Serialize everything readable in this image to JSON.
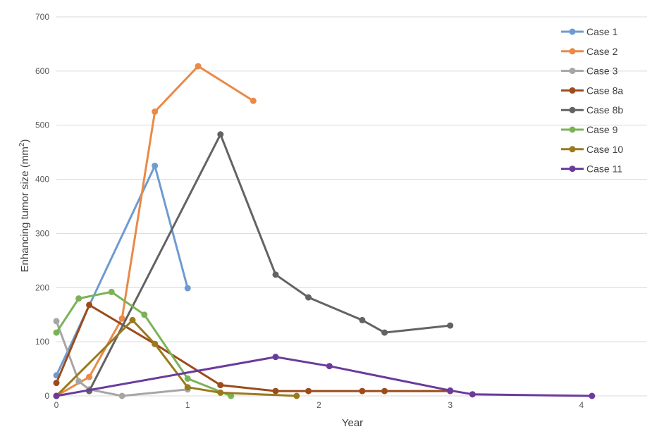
{
  "chart_data": {
    "type": "line",
    "title": "",
    "xlabel": "Year",
    "ylabel": "Enhancing tumor size (mm",
    "ylabel_sup": "2",
    "ylabel_close": ")",
    "xlim": [
      0,
      4.5
    ],
    "ylim": [
      0,
      700
    ],
    "xticks": [
      0,
      1,
      2,
      3,
      4
    ],
    "yticks": [
      0,
      100,
      200,
      300,
      400,
      500,
      600,
      700
    ],
    "grid": "horizontal",
    "legend_position": "top-right",
    "series": [
      {
        "name": "Case 1",
        "color": "#6e9bd1",
        "points": [
          [
            0,
            38
          ],
          [
            0.75,
            425
          ],
          [
            1.0,
            199
          ]
        ]
      },
      {
        "name": "Case 2",
        "color": "#e98a48",
        "points": [
          [
            0,
            0
          ],
          [
            0.25,
            35
          ],
          [
            0.5,
            143
          ],
          [
            0.75,
            525
          ],
          [
            1.08,
            609
          ],
          [
            1.5,
            545
          ]
        ]
      },
      {
        "name": "Case 3",
        "color": "#a6a6a6",
        "points": [
          [
            0,
            138
          ],
          [
            0.17,
            27
          ],
          [
            0.25,
            12
          ],
          [
            0.5,
            0
          ],
          [
            1.0,
            12
          ]
        ]
      },
      {
        "name": "Case 8a",
        "color": "#9c4c1b",
        "points": [
          [
            0,
            24
          ],
          [
            0.25,
            168
          ],
          [
            0.75,
            96
          ],
          [
            1.25,
            20
          ],
          [
            1.67,
            9
          ],
          [
            1.92,
            9
          ],
          [
            2.33,
            9
          ],
          [
            2.5,
            9
          ],
          [
            3.0,
            9
          ]
        ]
      },
      {
        "name": "Case 8b",
        "color": "#636363",
        "points": [
          [
            0.25,
            9
          ],
          [
            1.25,
            483
          ],
          [
            1.67,
            224
          ],
          [
            1.92,
            182
          ],
          [
            2.33,
            140
          ],
          [
            2.5,
            117
          ],
          [
            3.0,
            130
          ]
        ]
      },
      {
        "name": "Case 9",
        "color": "#7ab356",
        "points": [
          [
            0,
            117
          ],
          [
            0.17,
            180
          ],
          [
            0.42,
            192
          ],
          [
            0.67,
            150
          ],
          [
            1.0,
            32
          ],
          [
            1.33,
            0
          ]
        ]
      },
      {
        "name": "Case 10",
        "color": "#9a7a1f",
        "points": [
          [
            0,
            0
          ],
          [
            0.58,
            140
          ],
          [
            0.75,
            96
          ],
          [
            1.0,
            16
          ],
          [
            1.25,
            6
          ],
          [
            1.83,
            0
          ]
        ]
      },
      {
        "name": "Case 11",
        "color": "#6b3a9b",
        "points": [
          [
            0,
            0
          ],
          [
            1.67,
            72
          ],
          [
            2.08,
            55
          ],
          [
            3.0,
            10
          ],
          [
            3.17,
            3
          ],
          [
            4.08,
            0
          ]
        ]
      }
    ]
  }
}
